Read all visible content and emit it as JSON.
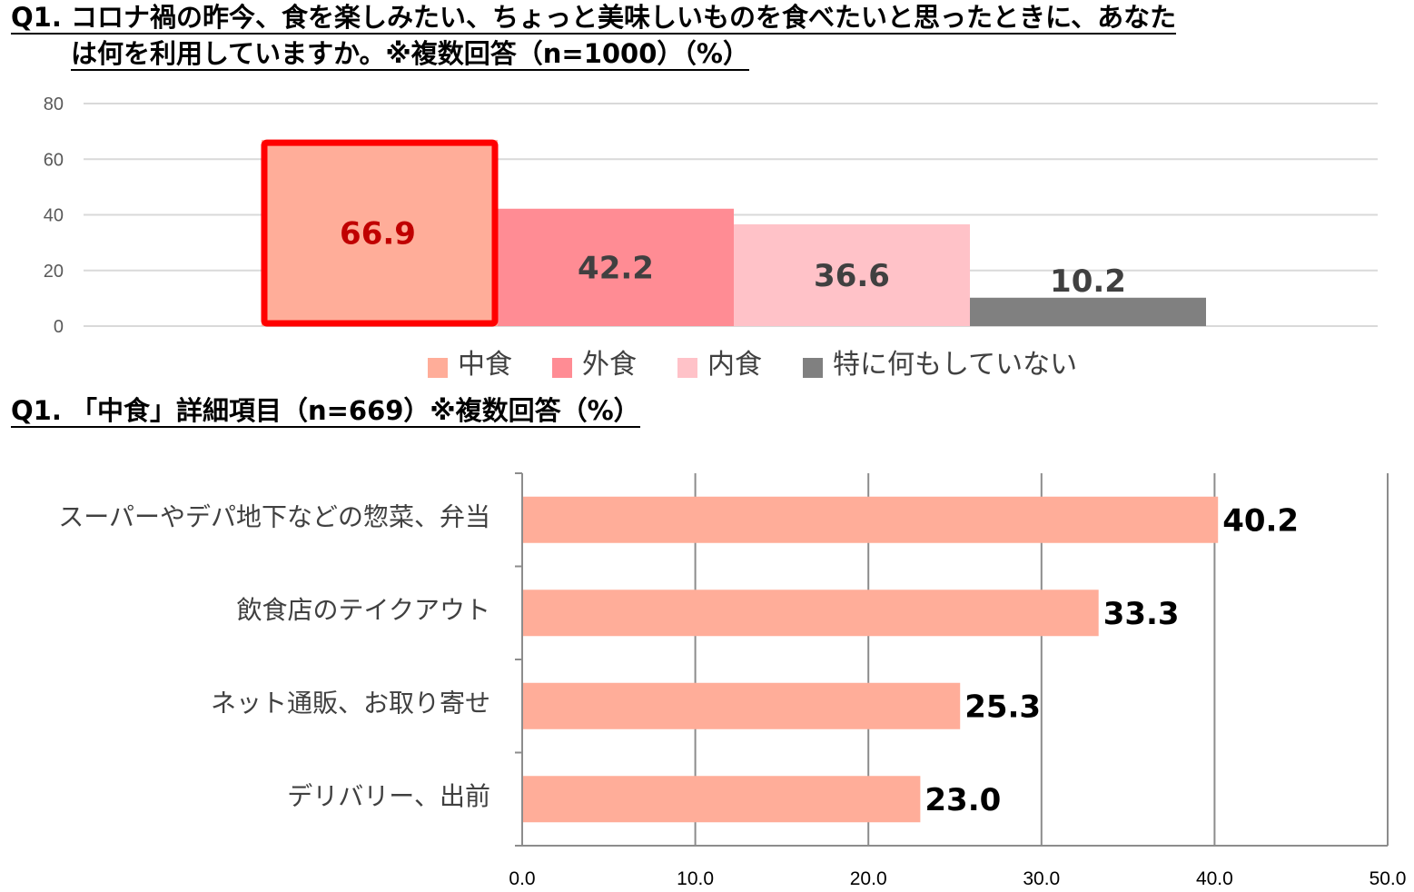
{
  "titles": {
    "chart1_line1": "Q1. コロナ禍の昨今、食を楽しみたい、ちょっと美味しいものを食べたいと思ったときに、あなた",
    "chart1_line2": "は何を利用していますか。※複数回答（n=1000）（%）",
    "chart2": "Q1. 「中食」詳細項目（n=669）※複数回答（%）"
  },
  "chart_data": [
    {
      "type": "bar",
      "orientation": "vertical",
      "categories": [
        "中食",
        "外食",
        "内食",
        "特に何もしていない"
      ],
      "values": [
        66.9,
        42.2,
        36.6,
        10.2
      ],
      "value_labels": [
        "66.9",
        "42.2",
        "36.6",
        "10.2"
      ],
      "colors": [
        "#FFAD99",
        "#FF8C94",
        "#FFC2C8",
        "#808080"
      ],
      "label_colors": [
        "#C00000",
        "#404040",
        "#404040",
        "#404040"
      ],
      "highlight_index": 0,
      "highlight_color": "#FF0000",
      "ylim": [
        0,
        80
      ],
      "yticks": [
        "80",
        "60",
        "40",
        "20",
        "0"
      ],
      "grid": true,
      "legend": "bottom"
    },
    {
      "type": "bar",
      "orientation": "horizontal",
      "categories": [
        "スーパーやデパ地下などの惣菜、弁当",
        "飲食店のテイクアウト",
        "ネット通販、お取り寄せ",
        "デリバリー、出前"
      ],
      "values": [
        40.2,
        33.3,
        25.3,
        23.0
      ],
      "value_labels": [
        "40.2",
        "33.3",
        "25.3",
        "23.0"
      ],
      "color": "#FFAD99",
      "xlim": [
        0,
        50
      ],
      "xticks": [
        "0.0",
        "10.0",
        "20.0",
        "30.0",
        "40.0",
        "50.0"
      ],
      "grid": true
    }
  ]
}
